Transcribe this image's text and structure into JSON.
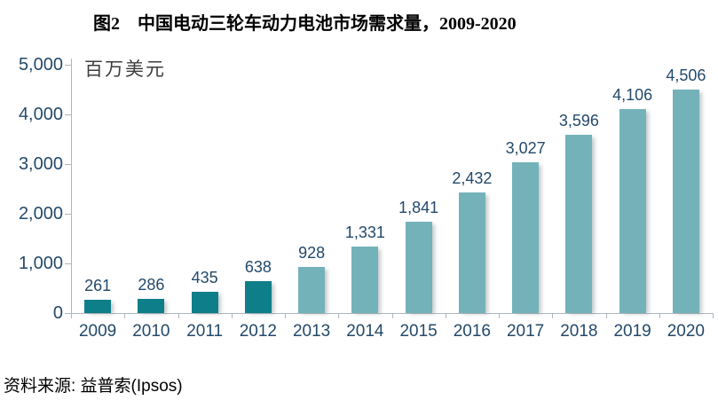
{
  "title": "图2　中国电动三轮车动力电池市场需求量，2009-2020",
  "unit_label": "百万美元",
  "source": "资料来源: 益普索(Ipsos)",
  "chart_data": {
    "type": "bar",
    "title": "图2　中国电动三轮车动力电池市场需求量，2009-2020",
    "xlabel": "",
    "ylabel": "百万美元",
    "categories": [
      "2009",
      "2010",
      "2011",
      "2012",
      "2013",
      "2014",
      "2015",
      "2016",
      "2017",
      "2018",
      "2019",
      "2020"
    ],
    "values": [
      261,
      286,
      435,
      638,
      928,
      1331,
      1841,
      2432,
      3027,
      3596,
      4106,
      4506
    ],
    "value_labels": [
      "261",
      "286",
      "435",
      "638",
      "928",
      "1,331",
      "1,841",
      "2,432",
      "3,027",
      "3,596",
      "4,106",
      "4,506"
    ],
    "ylim": [
      0,
      5000
    ],
    "ytick_step": 1000,
    "ytick_labels": [
      "0",
      "1,000",
      "2,000",
      "3,000",
      "4,000",
      "5,000"
    ],
    "grid": false,
    "legend": "none",
    "data_labels": "above bars",
    "colors": {
      "bar_dark": "#0e7e89",
      "bar_light": "#73b2b9",
      "dark_bar_count": 4,
      "label_text": "#23496b",
      "axis_line": "#aeb7bd",
      "title_text": "#000000",
      "unit_text": "#3d3d3d",
      "source_text": "#000000",
      "background": "#ffffff"
    }
  }
}
